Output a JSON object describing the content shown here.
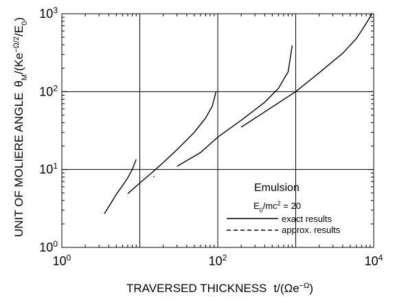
{
  "chart_data": {
    "type": "line",
    "x_scale": "log",
    "y_scale": "log",
    "xlim": [
      1,
      10000
    ],
    "ylim": [
      1,
      1000
    ],
    "grid": true,
    "xlabel": {
      "main": "TRAVERSED THICKNESS",
      "var": "t/(Ωe",
      "sup": "−Ω",
      "close": ")"
    },
    "ylabel": {
      "main": "UNIT OF MOLIERE ANGLE",
      "var": "θ",
      "var_sub": "M",
      "mid": "/(Ke",
      "sup": "−Ω/2",
      "mid2": "/E",
      "sub2": "0",
      "close": ")"
    },
    "x_ticks": [
      {
        "value": 1,
        "base": "10",
        "exp": "0"
      },
      {
        "value": 100,
        "base": "10",
        "exp": "2"
      },
      {
        "value": 10000,
        "base": "10",
        "exp": "4"
      }
    ],
    "y_ticks": [
      {
        "value": 1,
        "base": "10",
        "exp": "0"
      },
      {
        "value": 10,
        "base": "10",
        "exp": "1"
      },
      {
        "value": 100,
        "base": "10",
        "exp": "2"
      },
      {
        "value": 1000,
        "base": "10",
        "exp": "3"
      }
    ],
    "grid_x": [
      10,
      100,
      1000
    ],
    "grid_y": [
      10,
      100
    ],
    "legend": {
      "title": "Emulsion",
      "param_pre": "E",
      "param_sub": "0",
      "param_mid": "/mc",
      "param_sup": "2",
      "param_post": " = 20",
      "entries": [
        {
          "label": "exact results",
          "style": "solid"
        },
        {
          "label": "approx. results",
          "style": "dashed"
        }
      ]
    },
    "series": [
      {
        "label": "exact results",
        "style": "solid",
        "points": [
          [
            3.5,
            2.7
          ],
          [
            4.2,
            3.6
          ],
          [
            5,
            4.8
          ],
          [
            6,
            6.2
          ],
          [
            7,
            7.8
          ],
          [
            8,
            10
          ],
          [
            9,
            13.5
          ]
        ]
      },
      {
        "label": "exact results",
        "style": "solid",
        "points": [
          [
            7,
            4.9
          ],
          [
            10,
            6.7
          ],
          [
            15,
            9.5
          ],
          [
            20,
            12.3
          ],
          [
            30,
            18
          ],
          [
            50,
            30
          ],
          [
            70,
            46
          ],
          [
            85,
            65
          ],
          [
            95,
            100
          ]
        ]
      },
      {
        "label": "exact results",
        "style": "solid",
        "points": [
          [
            30,
            11
          ],
          [
            60,
            16.5
          ],
          [
            100,
            26
          ],
          [
            200,
            43
          ],
          [
            400,
            73
          ],
          [
            600,
            110
          ],
          [
            800,
            180
          ],
          [
            900,
            390
          ]
        ]
      },
      {
        "label": "exact results",
        "style": "solid",
        "points": [
          [
            200,
            35
          ],
          [
            400,
            55
          ],
          [
            1000,
            100
          ],
          [
            2000,
            175
          ],
          [
            4000,
            310
          ],
          [
            6000,
            480
          ],
          [
            8000,
            750
          ],
          [
            9500,
            1000
          ]
        ]
      },
      {
        "label": "approx. results",
        "style": "dashed",
        "points": [
          [
            15,
            8
          ],
          [
            15.3,
            8.2
          ]
        ]
      }
    ]
  }
}
